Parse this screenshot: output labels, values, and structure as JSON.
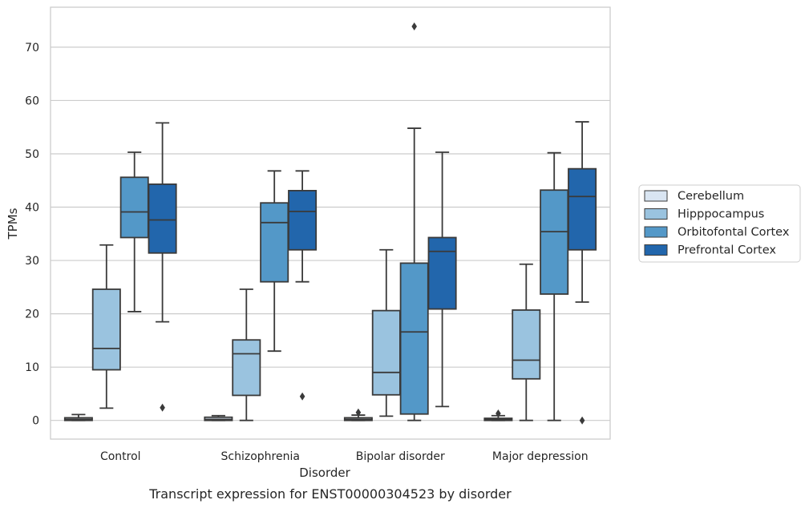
{
  "chart_data": {
    "type": "box",
    "xlabel": "Disorder",
    "ylabel": "TPMs",
    "caption": "Transcript expression for ENST00000304523 by disorder",
    "ylim": [
      -3.5,
      77.5
    ],
    "yticks": [
      0,
      10,
      20,
      30,
      40,
      50,
      60,
      70
    ],
    "grid": true,
    "legend_placement": "right",
    "categories": [
      "Control",
      "Schizophrenia",
      "Bipolar disorder",
      "Major depression"
    ],
    "series": [
      {
        "name": "Cerebellum",
        "color": "#d9e5f2",
        "boxes": [
          {
            "min": 0.0,
            "q1": 0.0,
            "median": 0.2,
            "q3": 0.5,
            "max": 1.1,
            "outliers": []
          },
          {
            "min": 0.0,
            "q1": 0.0,
            "median": 0.2,
            "q3": 0.6,
            "max": 0.9,
            "outliers": []
          },
          {
            "min": 0.0,
            "q1": 0.0,
            "median": 0.2,
            "q3": 0.5,
            "max": 1.0,
            "outliers": [
              1.5
            ]
          },
          {
            "min": 0.0,
            "q1": 0.0,
            "median": 0.2,
            "q3": 0.4,
            "max": 0.9,
            "outliers": [
              1.3
            ]
          }
        ]
      },
      {
        "name": "Hipppocampus",
        "color": "#9ac3df",
        "boxes": [
          {
            "min": 2.3,
            "q1": 9.5,
            "median": 13.5,
            "q3": 24.6,
            "max": 32.9,
            "outliers": []
          },
          {
            "min": 0.0,
            "q1": 4.7,
            "median": 12.5,
            "q3": 15.1,
            "max": 24.6,
            "outliers": []
          },
          {
            "min": 0.8,
            "q1": 4.8,
            "median": 9.0,
            "q3": 20.6,
            "max": 32.0,
            "outliers": []
          },
          {
            "min": 0.0,
            "q1": 7.8,
            "median": 11.3,
            "q3": 20.7,
            "max": 29.3,
            "outliers": []
          }
        ]
      },
      {
        "name": "Orbitofontal Cortex",
        "color": "#5398c8",
        "boxes": [
          {
            "min": 20.4,
            "q1": 34.3,
            "median": 39.1,
            "q3": 45.6,
            "max": 50.3,
            "outliers": []
          },
          {
            "min": 13.0,
            "q1": 26.0,
            "median": 37.1,
            "q3": 40.8,
            "max": 46.8,
            "outliers": []
          },
          {
            "min": 0.0,
            "q1": 1.2,
            "median": 16.6,
            "q3": 29.5,
            "max": 54.8,
            "outliers": [
              73.9
            ]
          },
          {
            "min": 0.0,
            "q1": 23.7,
            "median": 35.4,
            "q3": 43.2,
            "max": 50.2,
            "outliers": []
          }
        ]
      },
      {
        "name": "Prefrontal Cortex",
        "color": "#2266ac",
        "boxes": [
          {
            "min": 18.5,
            "q1": 31.4,
            "median": 37.6,
            "q3": 44.3,
            "max": 55.8,
            "outliers": [
              2.4
            ]
          },
          {
            "min": 26.0,
            "q1": 32.0,
            "median": 39.2,
            "q3": 43.1,
            "max": 46.8,
            "outliers": [
              4.5
            ]
          },
          {
            "min": 2.6,
            "q1": 20.9,
            "median": 31.7,
            "q3": 34.3,
            "max": 50.3,
            "outliers": []
          },
          {
            "min": 22.2,
            "q1": 32.0,
            "median": 42.0,
            "q3": 47.2,
            "max": 56.0,
            "outliers": [
              0.0
            ]
          }
        ]
      }
    ]
  }
}
